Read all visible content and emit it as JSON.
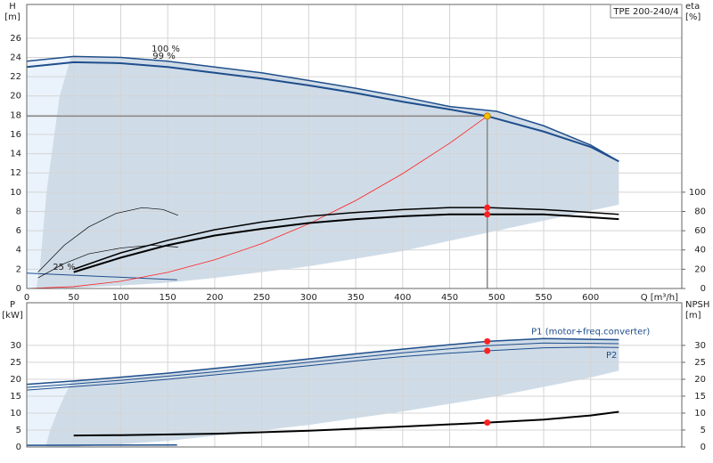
{
  "chart_data": [
    {
      "type": "line",
      "title": "TPE 200-240/4",
      "xlabel": "Q [m³/h]",
      "ylabel": "H",
      "yunit": "[m]",
      "y2label": "eta",
      "y2unit": "[%]",
      "xlim": [
        0,
        697
      ],
      "xticks": [
        0,
        50,
        100,
        150,
        200,
        250,
        300,
        350,
        400,
        450,
        500,
        550,
        600
      ],
      "ylim": [
        0,
        29.5
      ],
      "yticks": [
        0,
        2,
        4,
        6,
        8,
        10,
        12,
        14,
        16,
        18,
        20,
        22,
        24,
        26
      ],
      "y2lim": [
        0,
        295
      ],
      "y2ticks": [
        0,
        20,
        40,
        60,
        80,
        100
      ],
      "grid": true,
      "curve_labels": [
        "100 %",
        "99 %",
        "25 %"
      ],
      "regions": [
        {
          "color": "#eaf3fb",
          "x": [
            0,
            50,
            50,
            0
          ],
          "y": [
            23.6,
            24.1,
            0,
            0
          ]
        },
        {
          "color": "#cfdce8",
          "x": [
            50,
            100,
            150,
            200,
            250,
            300,
            350,
            400,
            450,
            500,
            550,
            600,
            630,
            630,
            500,
            400,
            300,
            200,
            150,
            100,
            50,
            10,
            14,
            21,
            35,
            47
          ],
          "y": [
            24.1,
            24.0,
            23.6,
            23.0,
            22.4,
            21.6,
            20.8,
            19.9,
            18.9,
            18.4,
            16.9,
            14.9,
            13.2,
            8.7,
            6.0,
            3.9,
            2.3,
            1.1,
            0.6,
            0.3,
            0.05,
            0,
            2.2,
            10,
            20,
            24
          ]
        }
      ],
      "series": [
        {
          "color": "#1f4e8c",
          "width": 1.5,
          "x": [
            0,
            50,
            100,
            150,
            200,
            250,
            300,
            350,
            400,
            450,
            500,
            550,
            600,
            630
          ],
          "values": [
            23.6,
            24.1,
            24.0,
            23.6,
            23.0,
            22.4,
            21.6,
            20.8,
            19.9,
            18.9,
            18.4,
            16.9,
            14.9,
            13.2
          ]
        },
        {
          "color": "#1f4e8c",
          "width": 2,
          "x": [
            0,
            50,
            100,
            150,
            200,
            250,
            300,
            350,
            400,
            450,
            490,
            550,
            600,
            630
          ],
          "values": [
            23.0,
            23.5,
            23.4,
            23.0,
            22.4,
            21.8,
            21.1,
            20.3,
            19.4,
            18.6,
            17.9,
            16.3,
            14.7,
            13.2
          ]
        },
        {
          "color": "#1f4e8c",
          "width": 1,
          "x": [
            0,
            160
          ],
          "values": [
            1.6,
            0.9
          ]
        },
        {
          "color": "#ff2020",
          "width": 0.8,
          "x": [
            0,
            50,
            100,
            150,
            200,
            250,
            300,
            350,
            400,
            450,
            490
          ],
          "values": [
            0,
            0.19,
            0.75,
            1.68,
            2.98,
            4.66,
            6.71,
            9.13,
            11.93,
            15.09,
            17.9
          ]
        },
        {
          "color": "#000000",
          "width": 1.5,
          "axis": "y2",
          "x": [
            50,
            100,
            150,
            200,
            250,
            300,
            350,
            400,
            450,
            490,
            550,
            600,
            630
          ],
          "values": [
            20,
            37,
            50,
            61,
            69,
            75,
            79,
            82,
            84,
            84,
            82,
            79,
            77
          ]
        },
        {
          "color": "#000000",
          "width": 2,
          "axis": "y2",
          "x": [
            50,
            100,
            150,
            200,
            250,
            300,
            350,
            400,
            450,
            490,
            550,
            600,
            630
          ],
          "values": [
            17,
            32,
            45,
            55,
            62,
            68,
            72,
            75,
            77,
            77,
            77,
            74,
            72
          ]
        },
        {
          "color": "#000000",
          "width": 0.7,
          "axis": "y2",
          "x": [
            12,
            40,
            66,
            95,
            123,
            145,
            161
          ],
          "values": [
            17,
            45,
            64,
            78,
            84,
            82,
            76
          ]
        },
        {
          "color": "#000000",
          "width": 0.7,
          "axis": "y2",
          "x": [
            12,
            40,
            66,
            100,
            133,
            161
          ],
          "values": [
            11,
            26,
            36,
            42,
            45,
            43
          ]
        }
      ],
      "operating_point": {
        "x": 490,
        "y": 17.9
      },
      "points": [
        {
          "color": "#f5c000",
          "x": 490,
          "y": 17.9
        },
        {
          "color": "#ff2020",
          "axis": "y2",
          "x": 490,
          "y": 84
        },
        {
          "color": "#ff2020",
          "axis": "y2",
          "x": 490,
          "y": 77
        }
      ]
    },
    {
      "type": "line",
      "ylabel": "P",
      "yunit": "[kW]",
      "y2label": "NPSH",
      "y2unit": "[m]",
      "xlim": [
        0,
        697
      ],
      "xticks": [
        0,
        50,
        100,
        150,
        200,
        250,
        300,
        350,
        400,
        450,
        500,
        550,
        600
      ],
      "ylim": [
        0,
        42.6
      ],
      "yticks": [
        0,
        5,
        10,
        15,
        20,
        25,
        30
      ],
      "y2lim": [
        0,
        42.6
      ],
      "y2ticks": [
        0,
        5,
        10,
        15,
        20,
        25,
        30
      ],
      "grid": true,
      "regions": [
        {
          "color": "#eaf3fb",
          "x": [
            0,
            50,
            50,
            0
          ],
          "y": [
            18.5,
            19.5,
            0,
            0
          ]
        },
        {
          "color": "#cfdce8",
          "x": [
            50,
            100,
            150,
            200,
            250,
            300,
            350,
            400,
            450,
            490,
            550,
            600,
            630,
            630,
            600,
            500,
            400,
            300,
            200,
            150,
            100,
            50,
            20,
            25,
            32,
            40,
            48
          ],
          "y": [
            19.5,
            20.6,
            21.8,
            23.2,
            24.6,
            26.0,
            27.5,
            28.9,
            30.2,
            31.2,
            32.0,
            31.8,
            31.7,
            22.5,
            20.5,
            15,
            10.5,
            6.5,
            3.3,
            1.8,
            0.8,
            0.1,
            0,
            5,
            10,
            15,
            19.5
          ]
        }
      ],
      "series": [
        {
          "name": "P1 (motor+freq.converter)",
          "color": "#1f4e8c",
          "width": 1.5,
          "x": [
            0,
            50,
            100,
            150,
            200,
            250,
            300,
            350,
            400,
            450,
            490,
            550,
            600,
            630
          ],
          "values": [
            18.5,
            19.5,
            20.6,
            21.8,
            23.2,
            24.6,
            26.0,
            27.5,
            28.9,
            30.2,
            31.2,
            32.0,
            31.8,
            31.7
          ]
        },
        {
          "color": "#1f4e8c",
          "width": 1,
          "x": [
            0,
            50,
            100,
            150,
            200,
            250,
            300,
            350,
            400,
            450,
            490,
            550,
            600,
            630
          ],
          "values": [
            17.6,
            18.6,
            19.7,
            20.9,
            22.2,
            23.6,
            25.0,
            26.4,
            27.8,
            29.0,
            29.9,
            30.7,
            30.6,
            30.5
          ]
        },
        {
          "name": "P2",
          "color": "#1f4e8c",
          "width": 1,
          "x": [
            0,
            50,
            100,
            150,
            200,
            250,
            300,
            350,
            400,
            450,
            490,
            550,
            600,
            630
          ],
          "values": [
            16.8,
            17.8,
            18.8,
            20.0,
            21.3,
            22.6,
            24.0,
            25.4,
            26.7,
            27.7,
            28.4,
            29.3,
            29.5,
            29.4
          ]
        },
        {
          "color": "#1f4e8c",
          "width": 1.5,
          "x": [
            0,
            160
          ],
          "values": [
            0.5,
            0.6
          ]
        },
        {
          "color": "#000000",
          "width": 2,
          "axis": "y2",
          "x": [
            50,
            100,
            200,
            300,
            400,
            490,
            550,
            600,
            630
          ],
          "values": [
            3.4,
            3.5,
            3.9,
            4.8,
            6.0,
            7.2,
            8.1,
            9.3,
            10.4
          ]
        }
      ],
      "points": [
        {
          "color": "#ff2020",
          "x": 490,
          "y": 31.2
        },
        {
          "color": "#ff2020",
          "x": 490,
          "y": 28.4
        },
        {
          "color": "#ff2020",
          "axis": "y2",
          "x": 490,
          "y": 7.2
        }
      ]
    }
  ]
}
